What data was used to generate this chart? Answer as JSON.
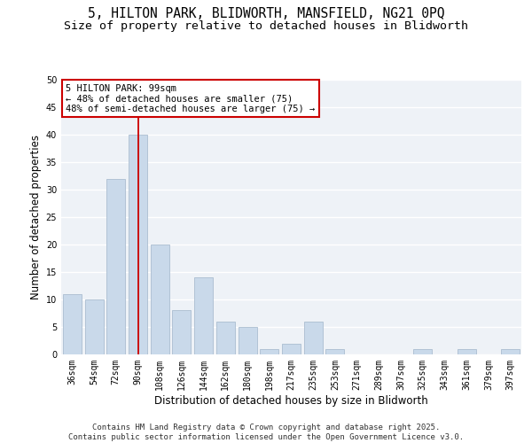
{
  "title_line1": "5, HILTON PARK, BLIDWORTH, MANSFIELD, NG21 0PQ",
  "title_line2": "Size of property relative to detached houses in Blidworth",
  "xlabel": "Distribution of detached houses by size in Blidworth",
  "ylabel": "Number of detached properties",
  "categories": [
    "36sqm",
    "54sqm",
    "72sqm",
    "90sqm",
    "108sqm",
    "126sqm",
    "144sqm",
    "162sqm",
    "180sqm",
    "198sqm",
    "217sqm",
    "235sqm",
    "253sqm",
    "271sqm",
    "289sqm",
    "307sqm",
    "325sqm",
    "343sqm",
    "361sqm",
    "379sqm",
    "397sqm"
  ],
  "values": [
    11,
    10,
    32,
    40,
    20,
    8,
    14,
    6,
    5,
    1,
    2,
    6,
    1,
    0,
    0,
    0,
    1,
    0,
    1,
    0,
    1
  ],
  "bar_color": "#c9d9ea",
  "bar_edge_color": "#aabdd0",
  "background_color": "#eef2f7",
  "grid_color": "#ffffff",
  "annotation_box_facecolor": "#ffffff",
  "annotation_border_color": "#cc0000",
  "annotation_text_line1": "5 HILTON PARK: 99sqm",
  "annotation_text_line2": "← 48% of detached houses are smaller (75)",
  "annotation_text_line3": "48% of semi-detached houses are larger (75) →",
  "red_line_x": 3,
  "ylim": [
    0,
    50
  ],
  "yticks": [
    0,
    5,
    10,
    15,
    20,
    25,
    30,
    35,
    40,
    45,
    50
  ],
  "footer_line1": "Contains HM Land Registry data © Crown copyright and database right 2025.",
  "footer_line2": "Contains public sector information licensed under the Open Government Licence v3.0.",
  "title_fontsize": 10.5,
  "subtitle_fontsize": 9.5,
  "axis_label_fontsize": 8.5,
  "tick_fontsize": 7,
  "annotation_fontsize": 7.5,
  "footer_fontsize": 6.5
}
